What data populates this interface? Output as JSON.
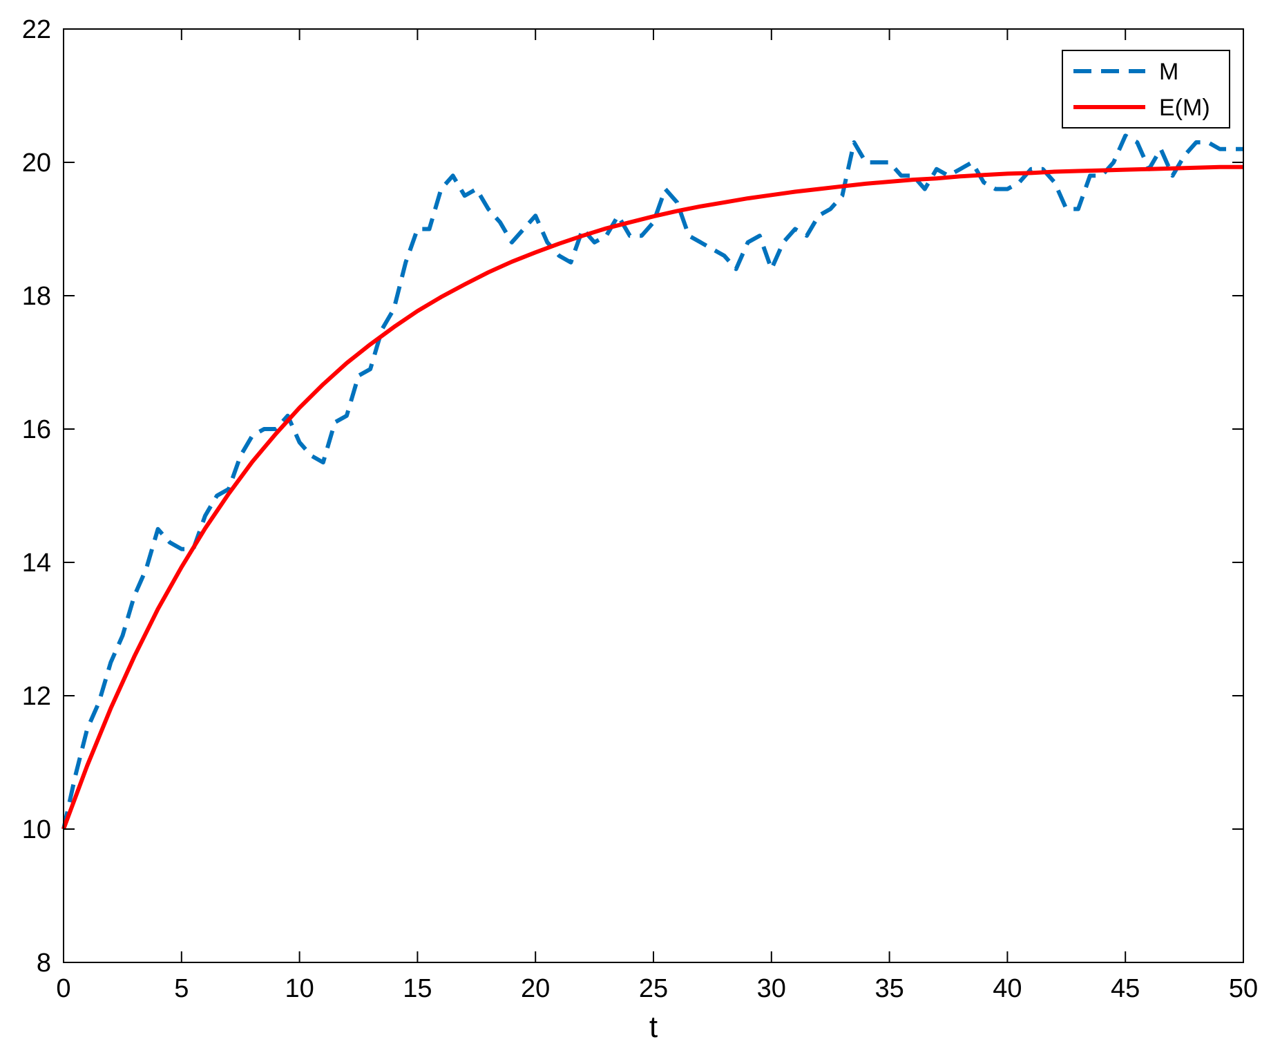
{
  "chart_data": {
    "type": "line",
    "title": "",
    "xlabel": "t",
    "ylabel": "",
    "xlim": [
      0,
      50
    ],
    "ylim": [
      8,
      22
    ],
    "xticks": [
      0,
      5,
      10,
      15,
      20,
      25,
      30,
      35,
      40,
      45,
      50
    ],
    "yticks": [
      8,
      10,
      12,
      14,
      16,
      18,
      20,
      22
    ],
    "grid": false,
    "legend_position": "top-right",
    "series": [
      {
        "name": "M",
        "color": "#0072BD",
        "style": "dashed",
        "x": [
          0,
          0.5,
          1,
          1.5,
          2,
          2.5,
          3,
          3.5,
          4,
          4.5,
          5,
          5.5,
          6,
          6.5,
          7,
          7.5,
          8,
          8.5,
          9,
          9.5,
          10,
          10.5,
          11,
          11.5,
          12,
          12.5,
          13,
          13.5,
          14,
          14.5,
          15,
          15.5,
          16,
          16.5,
          17,
          17.5,
          18,
          18.5,
          19,
          19.5,
          20,
          20.5,
          21,
          21.5,
          22,
          22.5,
          23,
          23.5,
          24,
          24.5,
          25,
          25.5,
          26,
          26.5,
          27,
          27.5,
          28,
          28.5,
          29,
          29.5,
          30,
          30.5,
          31,
          31.5,
          32,
          32.5,
          33,
          33.5,
          34,
          34.5,
          35,
          35.5,
          36,
          36.5,
          37,
          37.5,
          38,
          38.5,
          39,
          39.5,
          40,
          40.5,
          41,
          41.5,
          42,
          42.5,
          43,
          43.5,
          44,
          44.5,
          45,
          45.5,
          46,
          46.5,
          47,
          47.5,
          48,
          48.5,
          49,
          49.5,
          50
        ],
        "values": [
          10.0,
          10.8,
          11.5,
          11.9,
          12.5,
          12.9,
          13.5,
          13.9,
          14.5,
          14.3,
          14.2,
          14.2,
          14.7,
          15.0,
          15.1,
          15.6,
          15.9,
          16.0,
          16.0,
          16.2,
          15.8,
          15.6,
          15.5,
          16.1,
          16.2,
          16.8,
          16.9,
          17.5,
          17.8,
          18.5,
          19.0,
          19.0,
          19.6,
          19.8,
          19.5,
          19.6,
          19.3,
          19.1,
          18.8,
          19.0,
          19.2,
          18.8,
          18.6,
          18.5,
          19.0,
          18.8,
          18.9,
          19.2,
          18.9,
          18.9,
          19.1,
          19.6,
          19.4,
          18.9,
          18.8,
          18.7,
          18.6,
          18.4,
          18.8,
          18.9,
          18.4,
          18.8,
          19.0,
          18.9,
          19.2,
          19.3,
          19.5,
          20.3,
          20.0,
          20.0,
          20.0,
          19.8,
          19.8,
          19.6,
          19.9,
          19.8,
          19.9,
          20.0,
          19.7,
          19.6,
          19.6,
          19.7,
          19.9,
          19.9,
          19.7,
          19.3,
          19.3,
          19.8,
          19.8,
          20.0,
          20.4,
          20.3,
          19.9,
          20.2,
          19.8,
          20.1,
          20.3,
          20.3,
          20.2,
          20.2,
          20.2
        ]
      },
      {
        "name": "E(M)",
        "color": "#FF0000",
        "style": "solid",
        "x": [
          0,
          1,
          2,
          3,
          4,
          5,
          6,
          7,
          8,
          9,
          10,
          11,
          12,
          13,
          14,
          15,
          16,
          17,
          18,
          19,
          20,
          21,
          22,
          23,
          24,
          25,
          26,
          27,
          28,
          29,
          30,
          31,
          32,
          33,
          34,
          35,
          36,
          37,
          38,
          39,
          40,
          41,
          42,
          43,
          44,
          45,
          46,
          47,
          48,
          49,
          50
        ],
        "values": [
          10.0,
          10.95,
          11.81,
          12.59,
          13.3,
          13.93,
          14.51,
          15.03,
          15.51,
          15.93,
          16.32,
          16.67,
          16.99,
          17.27,
          17.53,
          17.77,
          17.98,
          18.17,
          18.35,
          18.51,
          18.65,
          18.78,
          18.9,
          19.01,
          19.1,
          19.19,
          19.27,
          19.34,
          19.4,
          19.46,
          19.51,
          19.56,
          19.6,
          19.64,
          19.68,
          19.71,
          19.74,
          19.76,
          19.79,
          19.81,
          19.83,
          19.84,
          19.86,
          19.87,
          19.88,
          19.89,
          19.9,
          19.91,
          19.92,
          19.93,
          19.93
        ]
      }
    ]
  }
}
